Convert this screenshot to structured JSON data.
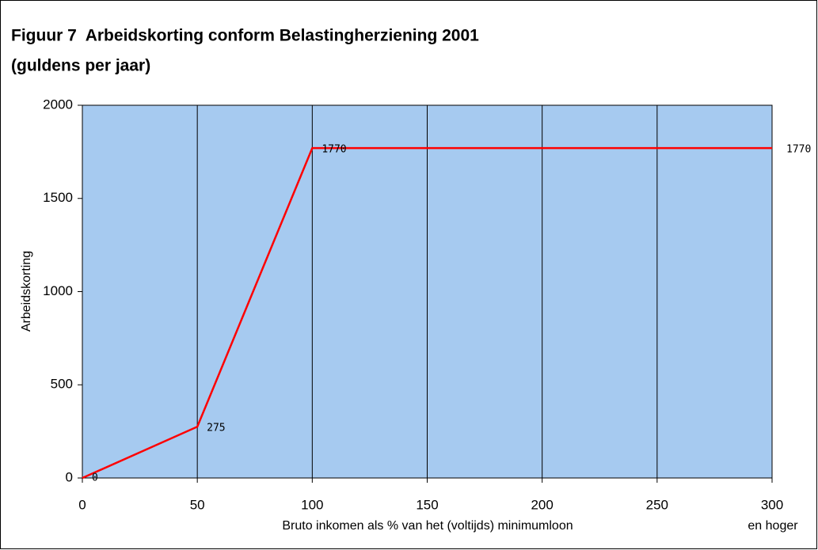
{
  "chart_data": {
    "type": "line",
    "title": [
      "Figuur 7  Arbeidskorting conform Belastingherziening 2001",
      "(guldens per jaar)"
    ],
    "x_label": "Bruto inkomen als % van het (voltijds) minimumloon",
    "y_label": "Arbeidskorting",
    "annotation": "en hoger",
    "x": [
      0,
      50,
      100,
      300
    ],
    "series": [
      {
        "name": "Arbeidskorting",
        "color": "#ff0000",
        "values": [
          0,
          275,
          1770,
          1770
        ]
      }
    ],
    "xlim": [
      0,
      300
    ],
    "xticks": [
      0,
      50,
      100,
      150,
      200,
      250,
      300
    ],
    "ylim": [
      0,
      2000
    ],
    "yticks": [
      0,
      500,
      1000,
      1500,
      2000
    ],
    "grid": "x",
    "background": "#a6caf0"
  }
}
